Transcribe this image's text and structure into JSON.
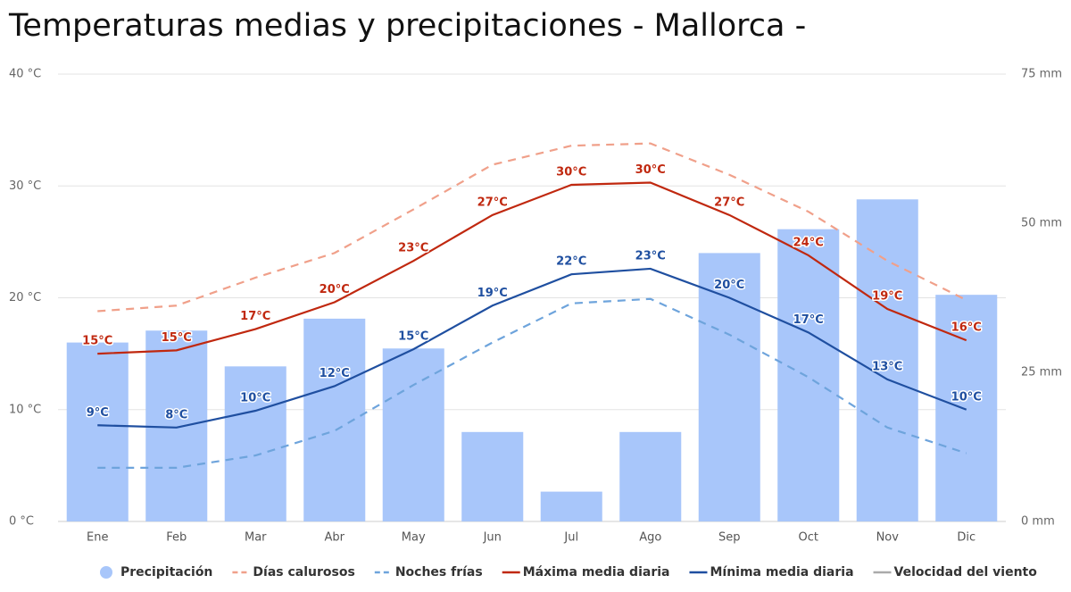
{
  "chart_data": {
    "type": "combo",
    "title": "Temperaturas medias y precipitaciones - Mallorca -",
    "categories": [
      "Ene",
      "Feb",
      "Mar",
      "Abr",
      "May",
      "Jun",
      "Jul",
      "Ago",
      "Sep",
      "Oct",
      "Nov",
      "Dic"
    ],
    "ylim": [
      0,
      40
    ],
    "yticks": [
      {
        "value": 0,
        "label": "0 °C"
      },
      {
        "value": 10,
        "label": "10 °C"
      },
      {
        "value": 20,
        "label": "20 °C"
      },
      {
        "value": 30,
        "label": "30 °C"
      },
      {
        "value": 40,
        "label": "40 °C"
      }
    ],
    "y2lim": [
      0,
      75
    ],
    "y2ticks": [
      {
        "value": 0,
        "label": "0 mm"
      },
      {
        "value": 25,
        "label": "25 mm"
      },
      {
        "value": 50,
        "label": "50 mm"
      },
      {
        "value": 75,
        "label": "75 mm"
      }
    ],
    "grid": true,
    "series": [
      {
        "name": "Precipitación",
        "type": "bar",
        "axis": "y2",
        "color": "#a8c6fa",
        "values": [
          30,
          32,
          26,
          34,
          29,
          15,
          5,
          15,
          45,
          49,
          54,
          38
        ]
      },
      {
        "name": "Días calurosos",
        "type": "line",
        "dashed": true,
        "color": "#f0a08a",
        "values": [
          18.8,
          19.3,
          21.8,
          24.0,
          27.9,
          31.9,
          33.6,
          33.8,
          31.0,
          27.7,
          23.3,
          19.8
        ]
      },
      {
        "name": "Noches frías",
        "type": "line",
        "dashed": true,
        "color": "#6ea4dc",
        "values": [
          4.8,
          4.8,
          5.9,
          8.1,
          12.2,
          16.0,
          19.5,
          19.9,
          16.7,
          12.9,
          8.4,
          6.1
        ]
      },
      {
        "name": "Máxima media diaria",
        "type": "line",
        "color": "#c0280f",
        "values": [
          15.0,
          15.3,
          17.2,
          19.6,
          23.3,
          27.4,
          30.1,
          30.3,
          27.4,
          23.8,
          19.0,
          16.2
        ],
        "value_labels": [
          "15°C",
          "15°C",
          "17°C",
          "20°C",
          "23°C",
          "27°C",
          "30°C",
          "30°C",
          "27°C",
          "24°C",
          "19°C",
          "16°C"
        ]
      },
      {
        "name": "Mínima media diaria",
        "type": "line",
        "color": "#1f4fa0",
        "values": [
          8.6,
          8.4,
          9.9,
          12.1,
          15.4,
          19.3,
          22.1,
          22.6,
          20.0,
          16.9,
          12.7,
          10.0
        ],
        "value_labels": [
          "9°C",
          "8°C",
          "10°C",
          "12°C",
          "15°C",
          "19°C",
          "22°C",
          "23°C",
          "20°C",
          "17°C",
          "13°C",
          "10°C"
        ]
      },
      {
        "name": "Velocidad del viento",
        "type": "line",
        "visible": false,
        "color": "#aaaaaa",
        "values": [
          null,
          null,
          null,
          null,
          null,
          null,
          null,
          null,
          null,
          null,
          null,
          null
        ]
      }
    ]
  }
}
